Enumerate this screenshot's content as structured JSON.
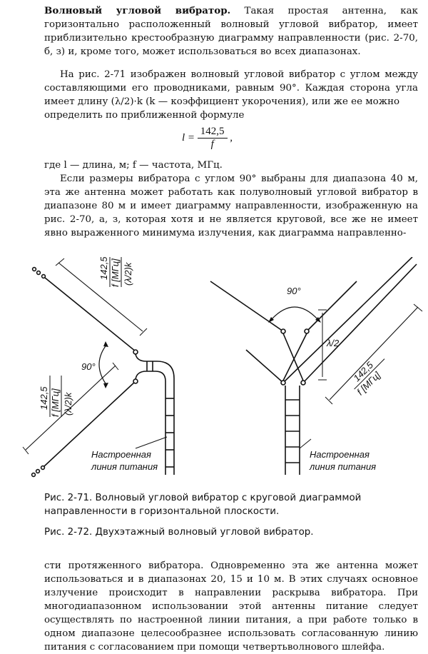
{
  "text": {
    "para1_title": "Волновый угловой вибратор.",
    "para1_body": " Такая простая антенна, как горизонтально расположенный волновый угловой вибратор, имеет приблизительно крестообразную диаграмму направленности (рис. 2-70, б, з) и, кроме того, может использоваться во всех диапазонах.",
    "para2": "На рис. 2-71 изображен волновый угловой вибратор с углом между составляющими его проводниками, равным 90°. Каждая сторона угла имеет длину (λ/2)·k (k — коэффициент укорочения), или же ее можно",
    "para3": "определить по приближенной формуле",
    "formula_lhs": "l =",
    "formula_num": "142,5",
    "formula_den": "f",
    "formula_tail": ",",
    "para4": "где l — длина, м; f — частота, МГц.",
    "para5": "Если размеры вибратора с углом 90° выбраны для диапазона 40 м, эта же антенна может работать как полуволновый угловой вибратор в диапазоне 80 м и имеет диаграмму направленности, изображенную на рис. 2-70, а, з, которая хотя и не является круговой, все же не имеет явно выраженного минимума излучения, как диаграмма направленно-",
    "caption1": "Рис. 2-71. Волновый угловой вибратор с круговой диаграммой направленности в горизонтальной плоскости.",
    "caption2": "Рис. 2-72. Двухэтажный волновый угловой вибратор.",
    "para6": "сти протяженного вибратора. Одновременно эта же антенна может использоваться и в диапазонах 20, 15 и 10 м. В этих случаях основное излучение происходит в направлении раскрыва вибратора. При многодиапазонном использовании этой антенны питание следует осуществлять по настроенной линии питания, а при работе только в одном диапазоне целесообразнее использовать согласованную линию питания с согласованием при помощи четвертьволнового шлейфа."
  },
  "figure_left": {
    "dim_top_1": "142,5",
    "dim_top_2": "f [МГц]",
    "dim_top_3": "(λ/2)k",
    "dim_bot_1": "142,5",
    "dim_bot_2": "f [МГц]",
    "dim_bot_3": "(λ/2)k",
    "angle": "90°",
    "line_label_1": "Настроенная",
    "line_label_2": "линия питания"
  },
  "figure_right": {
    "angle": "90°",
    "half_wave": "λ/2",
    "dim_1": "142,5",
    "dim_2": "f [МГц]",
    "line_label_1": "Настроенная",
    "line_label_2": "линия питания"
  }
}
